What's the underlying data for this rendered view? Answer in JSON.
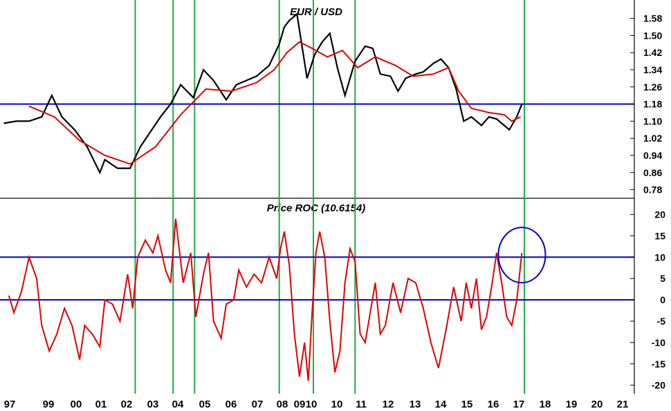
{
  "chart_data": [
    {
      "type": "line",
      "title": "EUR / USD",
      "yticks": [
        "1.58",
        "1.50",
        "1.42",
        "1.34",
        "1.26",
        "1.18",
        "1.10",
        "1.02",
        "0.94",
        "0.86",
        "0.78"
      ],
      "ylim": [
        0.74,
        1.64
      ],
      "grid": false,
      "colors": {
        "price": "#000000",
        "moving_average": "#e00000",
        "hline": "#0000cc",
        "vline": "#22aa44"
      },
      "hlines": [
        1.18
      ],
      "price_series": {
        "x": [
          1997.0,
          1997.5,
          1998.0,
          1998.5,
          1998.9,
          1999.3,
          1999.8,
          2000.3,
          2000.8,
          2001.0,
          2001.5,
          2002.0,
          2002.4,
          2002.8,
          2003.2,
          2003.6,
          2004.0,
          2004.5,
          2004.9,
          2005.3,
          2005.8,
          2006.2,
          2006.6,
          2007.0,
          2007.5,
          2007.9,
          2008.1,
          2008.3,
          2008.6,
          2008.8,
          2009.0,
          2009.3,
          2009.6,
          2009.9,
          2010.2,
          2010.5,
          2010.9,
          2011.3,
          2011.6,
          2011.9,
          2012.3,
          2012.6,
          2012.9,
          2013.3,
          2013.6,
          2014.0,
          2014.3,
          2014.6,
          2014.9,
          2015.2,
          2015.5,
          2015.9,
          2016.2,
          2016.5,
          2016.8,
          2017.0,
          2017.3,
          2017.5
        ],
        "y": [
          1.09,
          1.1,
          1.1,
          1.12,
          1.22,
          1.12,
          1.06,
          0.98,
          0.86,
          0.92,
          0.88,
          0.88,
          0.98,
          1.05,
          1.12,
          1.18,
          1.27,
          1.21,
          1.34,
          1.29,
          1.2,
          1.27,
          1.29,
          1.31,
          1.36,
          1.46,
          1.54,
          1.57,
          1.6,
          1.45,
          1.3,
          1.41,
          1.47,
          1.51,
          1.35,
          1.22,
          1.38,
          1.45,
          1.44,
          1.32,
          1.31,
          1.24,
          1.3,
          1.32,
          1.33,
          1.37,
          1.39,
          1.35,
          1.25,
          1.1,
          1.12,
          1.08,
          1.12,
          1.11,
          1.08,
          1.06,
          1.12,
          1.18
        ]
      },
      "moving_average": {
        "x": [
          1998.0,
          1999.0,
          2000.0,
          2001.0,
          2002.0,
          2003.0,
          2004.0,
          2005.0,
          2006.0,
          2007.0,
          2007.7,
          2008.2,
          2008.7,
          2009.2,
          2009.8,
          2010.4,
          2011.0,
          2011.7,
          2012.5,
          2013.2,
          2014.0,
          2014.6,
          2015.0,
          2015.5,
          2016.2,
          2016.8,
          2017.1,
          2017.45
        ],
        "y": [
          1.17,
          1.12,
          1.01,
          0.94,
          0.9,
          0.98,
          1.13,
          1.25,
          1.24,
          1.28,
          1.34,
          1.42,
          1.47,
          1.44,
          1.4,
          1.43,
          1.35,
          1.4,
          1.36,
          1.31,
          1.32,
          1.35,
          1.24,
          1.16,
          1.14,
          1.13,
          1.1,
          1.12
        ]
      }
    },
    {
      "type": "line",
      "title": "Price ROC (10.6154)",
      "yticks": [
        "20",
        "15",
        "10",
        "5",
        "0",
        "-5",
        "-10",
        "-15",
        "-20"
      ],
      "ylim": [
        -22,
        23
      ],
      "grid": false,
      "colors": {
        "roc": "#e00000",
        "hline": "#0000cc",
        "circle": "#0000cc",
        "vline": "#22aa44"
      },
      "hlines": [
        10,
        0
      ],
      "annotation": {
        "type": "circle",
        "x": 2017.5,
        "y": 10.5
      },
      "series": {
        "x": [
          1997.2,
          1997.4,
          1997.7,
          1998.0,
          1998.3,
          1998.5,
          1998.8,
          1999.1,
          1999.4,
          1999.7,
          2000.0,
          2000.2,
          2000.5,
          2000.8,
          2001.0,
          2001.3,
          2001.6,
          2001.9,
          2002.1,
          2002.3,
          2002.6,
          2002.9,
          2003.1,
          2003.4,
          2003.6,
          2003.8,
          2004.1,
          2004.4,
          2004.6,
          2004.9,
          2005.1,
          2005.3,
          2005.6,
          2005.8,
          2006.1,
          2006.3,
          2006.6,
          2006.9,
          2007.2,
          2007.5,
          2007.8,
          2007.95,
          2008.1,
          2008.3,
          2008.5,
          2008.7,
          2008.9,
          2009.05,
          2009.2,
          2009.35,
          2009.5,
          2009.7,
          2009.9,
          2010.1,
          2010.3,
          2010.5,
          2010.7,
          2010.9,
          2011.1,
          2011.3,
          2011.5,
          2011.7,
          2011.9,
          2012.1,
          2012.4,
          2012.7,
          2013.0,
          2013.3,
          2013.6,
          2013.9,
          2014.2,
          2014.5,
          2014.8,
          2015.1,
          2015.3,
          2015.5,
          2015.7,
          2015.9,
          2016.1,
          2016.3,
          2016.5,
          2016.7,
          2016.9,
          2017.1,
          2017.3,
          2017.5
        ],
        "y": [
          1,
          -3,
          2,
          10,
          5,
          -6,
          -12,
          -8,
          -2,
          -6,
          -14,
          -6,
          -8,
          -11,
          0,
          -1,
          -5,
          6,
          -2,
          10,
          14,
          11,
          15,
          7,
          4,
          19,
          4,
          11,
          -4,
          6,
          11,
          -5,
          -9,
          -1,
          0,
          7,
          3,
          6,
          4,
          10,
          5,
          12,
          16,
          8,
          -8,
          -18,
          -10,
          -19,
          -3,
          11,
          16,
          10,
          -5,
          -17,
          -12,
          4,
          12,
          9,
          -8,
          -10,
          -3,
          4,
          -8,
          -6,
          4,
          -3,
          5,
          4,
          -2,
          -10,
          -16,
          -7,
          3,
          -5,
          4,
          -2,
          5,
          -7,
          -4,
          3,
          11,
          4,
          -4,
          -6,
          0,
          11
        ]
      },
      "xticks": [
        "97",
        "99",
        "00",
        "01",
        "02",
        "03",
        "04",
        "05",
        "06",
        "07",
        "08",
        "09",
        "10",
        "10",
        "11",
        "12",
        "13",
        "14",
        "15",
        "16",
        "17",
        "18",
        "19",
        "20",
        "21"
      ]
    }
  ],
  "vertical_markers_years": [
    2002.2,
    2003.7,
    2004.55,
    2007.9,
    2009.25,
    2010.9,
    2017.6
  ]
}
